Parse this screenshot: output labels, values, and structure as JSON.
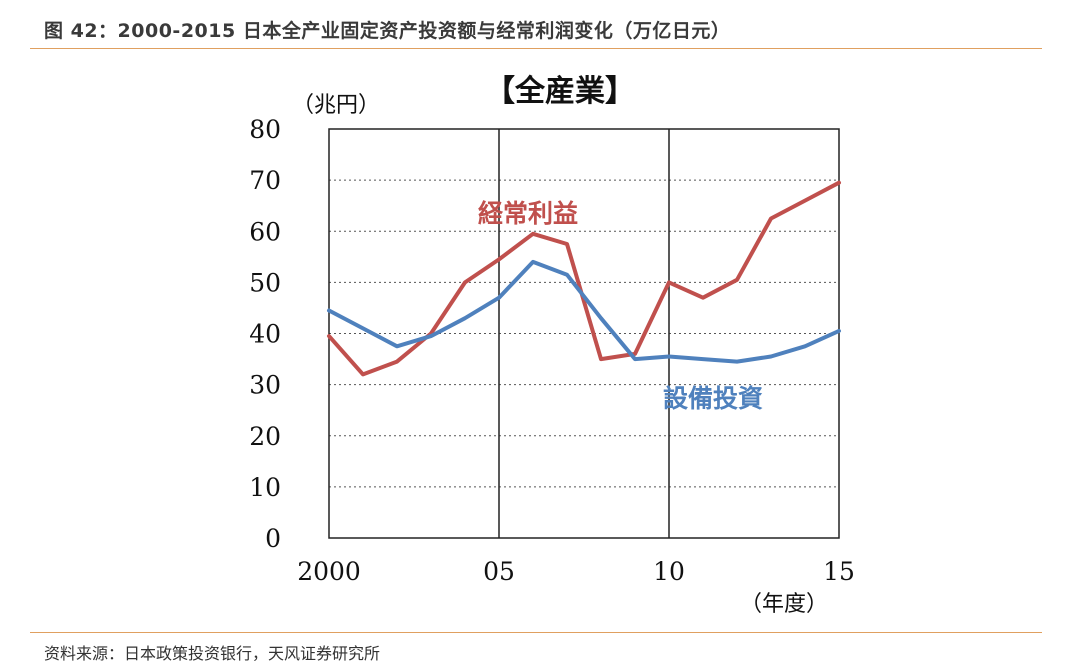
{
  "figure": {
    "caption": "图 42：2000-2015 日本全产业固定资产投资额与经常利润变化（万亿日元）",
    "source": "资料来源：日本政策投资银行，天风证券研究所"
  },
  "chart_data": {
    "type": "line",
    "title": "【全産業】",
    "ylabel": "（兆円）",
    "xlabel": "（年度）",
    "ylim": [
      0,
      80
    ],
    "yticks": [
      0,
      10,
      20,
      30,
      40,
      50,
      60,
      70,
      80
    ],
    "xlim": [
      2000,
      2015
    ],
    "xticks": [
      {
        "value": 2000,
        "label": "2000"
      },
      {
        "value": 2005,
        "label": "05"
      },
      {
        "value": 2010,
        "label": "10"
      },
      {
        "value": 2015,
        "label": "15"
      }
    ],
    "grid": "horizontal-dotted",
    "x": [
      2000,
      2001,
      2002,
      2003,
      2004,
      2005,
      2006,
      2007,
      2008,
      2009,
      2010,
      2011,
      2012,
      2013,
      2014,
      2015
    ],
    "series": [
      {
        "name": "経常利益",
        "color": "#c0504d",
        "values": [
          39.5,
          32,
          34.5,
          40,
          50,
          54.5,
          59.5,
          57.5,
          35,
          36,
          50,
          47,
          50.5,
          62.5,
          66,
          69.5
        ]
      },
      {
        "name": "設備投資",
        "color": "#4f81bd",
        "values": [
          44.5,
          41,
          37.5,
          39.5,
          43,
          47,
          54,
          51.5,
          43,
          35,
          35.5,
          35,
          34.5,
          35.5,
          37.5,
          40.5
        ]
      }
    ]
  }
}
